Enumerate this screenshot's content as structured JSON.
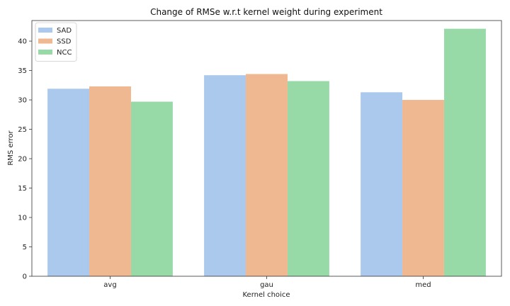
{
  "chart_data": {
    "type": "bar",
    "title": "Change of RMSe w.r.t kernel weight during experiment",
    "xlabel": "Kernel choice",
    "ylabel": "RMS error",
    "categories": [
      "avg",
      "gau",
      "med"
    ],
    "series": [
      {
        "name": "SAD",
        "color": "#abc9ed",
        "values": [
          31.9,
          34.2,
          31.3
        ]
      },
      {
        "name": "SSD",
        "color": "#f0b891",
        "values": [
          32.3,
          34.4,
          30.0
        ]
      },
      {
        "name": "NCC",
        "color": "#98d9a8",
        "values": [
          29.7,
          33.2,
          42.1
        ]
      }
    ],
    "ylim": [
      0,
      43.5
    ],
    "yticks": [
      0,
      5,
      10,
      15,
      20,
      25,
      30,
      35,
      40
    ],
    "grid": false,
    "legend_position": "top-left"
  }
}
